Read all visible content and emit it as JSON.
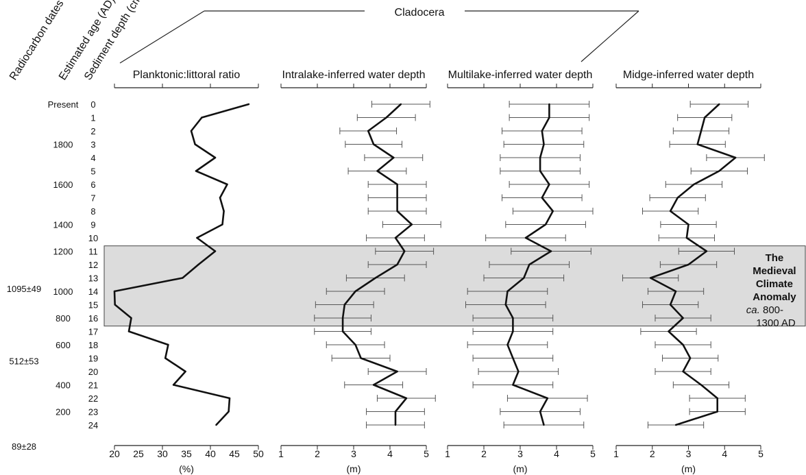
{
  "group_label": "Cladocera",
  "column_headers": [
    "Radiocarbon dates (AD)",
    "Estimated age (AD)",
    "Sediment depth (cm)"
  ],
  "mca_label": {
    "lines": [
      "The",
      "Medieval",
      "Climate",
      "Anomaly"
    ],
    "ca": "ca.",
    "range_lines": [
      " 800-",
      "1300 AD"
    ]
  },
  "band_color": "#dcdcdc",
  "chart_data": {
    "type": "line",
    "depth_labels": [
      "0",
      "1",
      "2",
      "3",
      "4",
      "5",
      "6",
      "7",
      "8",
      "9",
      "10",
      "11",
      "12",
      "13",
      "14",
      "15",
      "16",
      "17",
      "18",
      "19",
      "20",
      "21",
      "22",
      "23",
      "24"
    ],
    "estimated_age_labels": [
      {
        "label": "Present",
        "depth": 0
      },
      {
        "label": "1800",
        "depth": 3
      },
      {
        "label": "1600",
        "depth": 6
      },
      {
        "label": "1400",
        "depth": 9
      },
      {
        "label": "1200",
        "depth": 11
      },
      {
        "label": "1000",
        "depth": 14
      },
      {
        "label": "800",
        "depth": 16
      },
      {
        "label": "600",
        "depth": 18
      },
      {
        "label": "400",
        "depth": 21
      },
      {
        "label": "200",
        "depth": 23
      }
    ],
    "radiocarbon_labels": [
      {
        "label": "1095±49",
        "depth": 13.8
      },
      {
        "label": "512±53",
        "depth": 19.2
      },
      {
        "label": "89±28",
        "depth": 25.6
      }
    ],
    "shaded_band_depth": [
      10.6,
      16.6
    ],
    "panels": [
      {
        "title": "Planktonic:littoral ratio",
        "unit": "(%)",
        "xlim": [
          20,
          50
        ],
        "ticks": [
          20,
          30,
          40,
          50
        ],
        "tick_labels": [
          "20",
          "25",
          "30",
          "35",
          "40",
          "45",
          "50"
        ],
        "tick_label_values": [
          20,
          25,
          30,
          35,
          40,
          45,
          50
        ],
        "values": [
          48,
          38.2,
          36,
          36.8,
          41,
          37,
          43.5,
          42,
          42.8,
          42.5,
          37.2,
          41,
          37.5,
          34.2,
          20,
          20.1,
          23.5,
          23,
          31.2,
          30.6,
          34.8,
          32.3,
          44,
          43.8,
          41.2
        ]
      },
      {
        "title": "Intralake-inferred water depth",
        "unit": "(m)",
        "xlim": [
          1,
          5
        ],
        "ticks": [
          1,
          2,
          3,
          4,
          5
        ],
        "tick_labels": [
          "1",
          "2",
          "3",
          "4",
          "5"
        ],
        "tick_label_values": [
          1,
          2,
          3,
          4,
          5
        ],
        "values": [
          4.3,
          3.9,
          3.4,
          3.55,
          4.1,
          3.65,
          4.2,
          4.2,
          4.2,
          4.6,
          4.15,
          4.4,
          4.2,
          3.6,
          3.05,
          2.75,
          2.7,
          2.7,
          3.05,
          3.2,
          4.2,
          3.55,
          4.45,
          4.15,
          4.15
        ],
        "errors": [
          0.8,
          0.8,
          0.78,
          0.78,
          0.8,
          0.8,
          0.8,
          0.8,
          0.8,
          0.8,
          0.8,
          0.8,
          0.8,
          0.8,
          0.8,
          0.8,
          0.78,
          0.78,
          0.8,
          0.8,
          0.8,
          0.8,
          0.8,
          0.8,
          0.8
        ]
      },
      {
        "title": "Multilake-inferred water depth",
        "unit": "(m)",
        "xlim": [
          1,
          5
        ],
        "ticks": [
          1,
          2,
          3,
          4,
          5
        ],
        "tick_labels": [
          "1",
          "2",
          "3",
          "4",
          "5"
        ],
        "tick_label_values": [
          1,
          2,
          3,
          4,
          5
        ],
        "values": [
          3.8,
          3.8,
          3.6,
          3.65,
          3.55,
          3.55,
          3.8,
          3.6,
          3.9,
          3.7,
          3.15,
          3.85,
          3.25,
          3.1,
          2.65,
          2.6,
          2.8,
          2.8,
          2.65,
          2.8,
          2.95,
          2.8,
          3.75,
          3.55,
          3.65
        ],
        "errors": [
          1.1,
          1.1,
          1.1,
          1.1,
          1.1,
          1.1,
          1.1,
          1.1,
          1.1,
          1.1,
          1.1,
          1.1,
          1.1,
          1.1,
          1.1,
          1.1,
          1.1,
          1.1,
          1.1,
          1.1,
          1.1,
          1.1,
          1.1,
          1.1,
          1.1
        ]
      },
      {
        "title": "Midge-inferred water depth",
        "unit": "(m)",
        "xlim": [
          1,
          5
        ],
        "ticks": [
          1,
          2,
          3,
          4,
          5
        ],
        "tick_labels": [
          "1",
          "2",
          "3",
          "4",
          "5"
        ],
        "tick_label_values": [
          1,
          2,
          3,
          4,
          5
        ],
        "values": [
          3.85,
          3.45,
          3.35,
          3.25,
          4.3,
          3.85,
          3.15,
          2.7,
          2.5,
          3.0,
          2.95,
          3.5,
          3.0,
          1.95,
          2.65,
          2.5,
          2.85,
          2.45,
          2.85,
          3.05,
          2.85,
          3.35,
          3.8,
          3.8,
          2.65
        ],
        "errors": [
          0.8,
          0.75,
          0.77,
          0.77,
          0.8,
          0.78,
          0.78,
          0.77,
          0.77,
          0.77,
          0.77,
          0.77,
          0.78,
          0.77,
          0.77,
          0.77,
          0.77,
          0.77,
          0.77,
          0.77,
          0.77,
          0.77,
          0.77,
          0.77,
          0.77
        ]
      }
    ]
  }
}
